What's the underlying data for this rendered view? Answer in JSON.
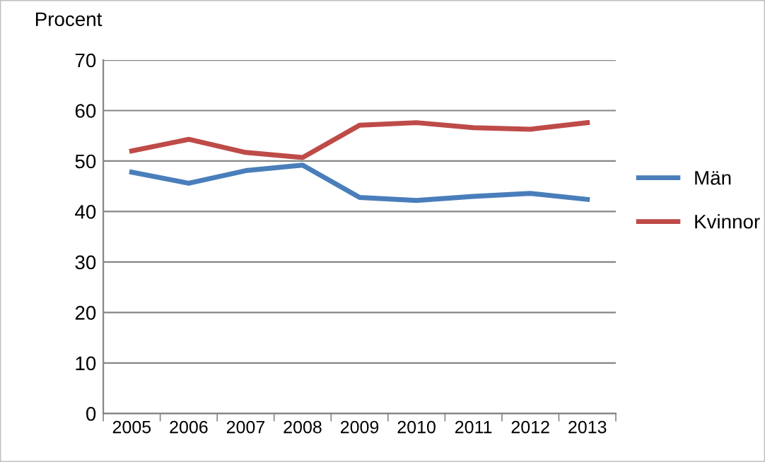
{
  "chart_data": {
    "type": "line",
    "ylabel": "Procent",
    "categories": [
      "2005",
      "2006",
      "2007",
      "2008",
      "2009",
      "2010",
      "2011",
      "2012",
      "2013"
    ],
    "series": [
      {
        "name": "Män",
        "color": "#4a7ebb",
        "values": [
          47.8,
          45.6,
          48.1,
          49.2,
          42.8,
          42.2,
          43.0,
          43.6,
          42.4
        ]
      },
      {
        "name": "Kvinnor",
        "color": "#be4b48",
        "values": [
          52.0,
          54.3,
          51.7,
          50.7,
          57.1,
          57.6,
          56.6,
          56.3,
          57.6
        ]
      }
    ],
    "ylim": [
      0,
      70
    ],
    "yticks": [
      0,
      10,
      20,
      30,
      40,
      50,
      60,
      70
    ],
    "grid": "y",
    "legend": "right",
    "marker": "none",
    "line_style": "solid"
  }
}
